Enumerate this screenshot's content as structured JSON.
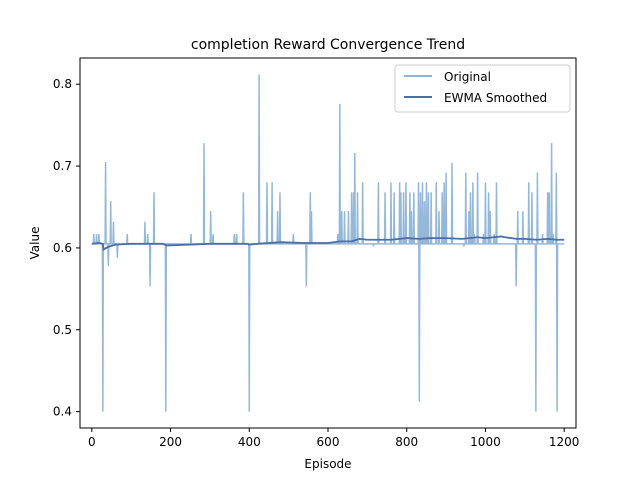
{
  "chart_data": {
    "type": "line",
    "title": "completion Reward Convergence Trend",
    "xlabel": "Episode",
    "ylabel": "Value",
    "xlim": [
      -30,
      1230
    ],
    "ylim": [
      0.38,
      0.832
    ],
    "xticks": [
      0,
      200,
      400,
      600,
      800,
      1000,
      1200
    ],
    "xtick_labels": [
      "0",
      "200",
      "400",
      "600",
      "800",
      "1000",
      "1200"
    ],
    "yticks": [
      0.4,
      0.5,
      0.6,
      0.7,
      0.8
    ],
    "ytick_labels": [
      "0.4",
      "0.5",
      "0.6",
      "0.7",
      "0.8"
    ],
    "grid": false,
    "legend_position": "top-right",
    "series": [
      {
        "name": "Original",
        "color": "#8fb4d6",
        "baseline": 0.605,
        "spikes": [
          [
            5,
            0.617
          ],
          [
            12,
            0.617
          ],
          [
            18,
            0.617
          ],
          [
            28,
            0.4
          ],
          [
            35,
            0.705
          ],
          [
            42,
            0.578
          ],
          [
            48,
            0.657
          ],
          [
            55,
            0.632
          ],
          [
            65,
            0.588
          ],
          [
            90,
            0.617
          ],
          [
            135,
            0.632
          ],
          [
            142,
            0.617
          ],
          [
            148,
            0.553
          ],
          [
            158,
            0.668
          ],
          [
            188,
            0.4
          ],
          [
            252,
            0.617
          ],
          [
            285,
            0.728
          ],
          [
            302,
            0.645
          ],
          [
            308,
            0.617
          ],
          [
            362,
            0.617
          ],
          [
            368,
            0.617
          ],
          [
            385,
            0.668
          ],
          [
            400,
            0.4
          ],
          [
            425,
            0.812
          ],
          [
            445,
            0.68
          ],
          [
            458,
            0.68
          ],
          [
            472,
            0.645
          ],
          [
            478,
            0.668
          ],
          [
            512,
            0.617
          ],
          [
            545,
            0.553
          ],
          [
            555,
            0.668
          ],
          [
            558,
            0.645
          ],
          [
            625,
            0.617
          ],
          [
            630,
            0.776
          ],
          [
            635,
            0.645
          ],
          [
            642,
            0.645
          ],
          [
            652,
            0.645
          ],
          [
            660,
            0.668
          ],
          [
            665,
            0.668
          ],
          [
            668,
            0.716
          ],
          [
            675,
            0.668
          ],
          [
            688,
            0.68
          ],
          [
            715,
            0.602
          ],
          [
            728,
            0.68
          ],
          [
            745,
            0.668
          ],
          [
            760,
            0.68
          ],
          [
            768,
            0.668
          ],
          [
            782,
            0.68
          ],
          [
            785,
            0.668
          ],
          [
            792,
            0.668
          ],
          [
            798,
            0.68
          ],
          [
            808,
            0.668
          ],
          [
            812,
            0.645
          ],
          [
            818,
            0.668
          ],
          [
            830,
            0.68
          ],
          [
            832,
            0.412
          ],
          [
            835,
            0.668
          ],
          [
            840,
            0.68
          ],
          [
            845,
            0.657
          ],
          [
            850,
            0.68
          ],
          [
            855,
            0.668
          ],
          [
            862,
            0.668
          ],
          [
            875,
            0.68
          ],
          [
            882,
            0.645
          ],
          [
            890,
            0.668
          ],
          [
            895,
            0.68
          ],
          [
            900,
            0.692
          ],
          [
            915,
            0.704
          ],
          [
            945,
            0.602
          ],
          [
            950,
            0.692
          ],
          [
            958,
            0.645
          ],
          [
            962,
            0.668
          ],
          [
            968,
            0.68
          ],
          [
            972,
            0.617
          ],
          [
            980,
            0.692
          ],
          [
            995,
            0.617
          ],
          [
            1000,
            0.68
          ],
          [
            1008,
            0.668
          ],
          [
            1012,
            0.645
          ],
          [
            1022,
            0.617
          ],
          [
            1028,
            0.68
          ],
          [
            1078,
            0.553
          ],
          [
            1082,
            0.645
          ],
          [
            1095,
            0.645
          ],
          [
            1110,
            0.68
          ],
          [
            1118,
            0.668
          ],
          [
            1128,
            0.4
          ],
          [
            1132,
            0.692
          ],
          [
            1145,
            0.617
          ],
          [
            1158,
            0.668
          ],
          [
            1162,
            0.668
          ],
          [
            1168,
            0.728
          ],
          [
            1172,
            0.617
          ],
          [
            1180,
            0.692
          ],
          [
            1182,
            0.4
          ]
        ]
      },
      {
        "name": "EWMA Smoothed",
        "color": "#4a6fa5",
        "points": [
          [
            0,
            0.605
          ],
          [
            20,
            0.606
          ],
          [
            28,
            0.605
          ],
          [
            30,
            0.598
          ],
          [
            40,
            0.601
          ],
          [
            60,
            0.604
          ],
          [
            100,
            0.605
          ],
          [
            180,
            0.605
          ],
          [
            190,
            0.603
          ],
          [
            250,
            0.604
          ],
          [
            300,
            0.605
          ],
          [
            395,
            0.605
          ],
          [
            400,
            0.604
          ],
          [
            420,
            0.605
          ],
          [
            480,
            0.607
          ],
          [
            540,
            0.606
          ],
          [
            600,
            0.606
          ],
          [
            630,
            0.608
          ],
          [
            660,
            0.608
          ],
          [
            680,
            0.611
          ],
          [
            700,
            0.61
          ],
          [
            760,
            0.61
          ],
          [
            800,
            0.612
          ],
          [
            830,
            0.611
          ],
          [
            860,
            0.612
          ],
          [
            900,
            0.612
          ],
          [
            940,
            0.611
          ],
          [
            980,
            0.613
          ],
          [
            1000,
            0.612
          ],
          [
            1040,
            0.614
          ],
          [
            1050,
            0.613
          ],
          [
            1080,
            0.611
          ],
          [
            1100,
            0.611
          ],
          [
            1130,
            0.61
          ],
          [
            1160,
            0.611
          ],
          [
            1180,
            0.61
          ],
          [
            1200,
            0.61
          ]
        ]
      }
    ]
  }
}
